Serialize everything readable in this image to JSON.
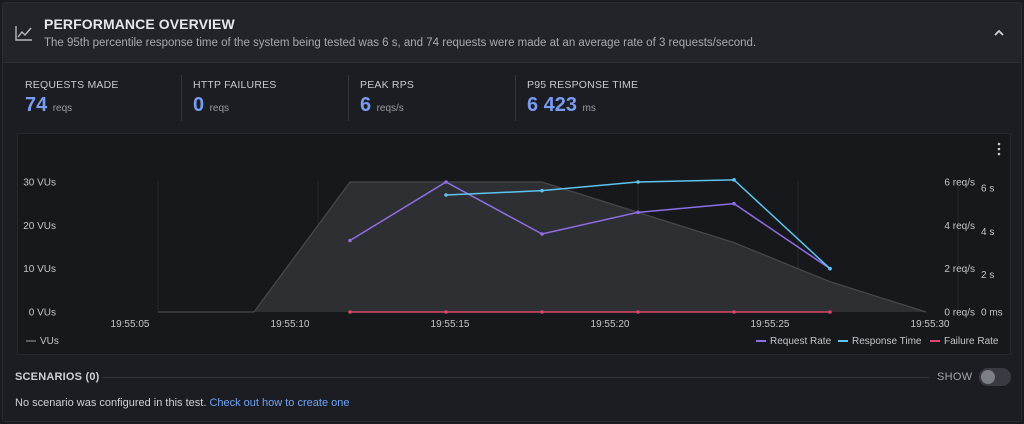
{
  "header": {
    "icon": "line-chart-icon",
    "title": "PERFORMANCE OVERVIEW",
    "description": "The 95th percentile response time of the system being tested was 6 s, and 74 requests were made at an average rate of 3 requests/second.",
    "collapse_icon": "chevron-up-icon"
  },
  "stats": [
    {
      "label": "REQUESTS MADE",
      "value": "74",
      "unit": "reqs"
    },
    {
      "label": "HTTP FAILURES",
      "value": "0",
      "unit": "reqs"
    },
    {
      "label": "PEAK RPS",
      "value": "6",
      "unit": "reqs/s"
    },
    {
      "label": "P95 RESPONSE TIME",
      "value": "6 423",
      "unit": "ms"
    }
  ],
  "chart_data": {
    "type": "line",
    "x_tick_labels": [
      "19:55:05",
      "19:55:10",
      "19:55:15",
      "19:55:20",
      "19:55:25",
      "19:55:30"
    ],
    "x_range": [
      "19:55:05",
      "19:55:30"
    ],
    "y_left": {
      "ticks": [
        0,
        10,
        20,
        30
      ],
      "tick_labels": [
        "0 VUs",
        "10 VUs",
        "20 VUs",
        "30 VUs"
      ],
      "range": [
        0,
        30
      ]
    },
    "y_right_rate": {
      "ticks": [
        0,
        2,
        4,
        6
      ],
      "tick_labels": [
        "0 req/s",
        "2 req/s",
        "4 req/s",
        "6 req/s"
      ],
      "range": [
        0,
        6
      ]
    },
    "y_right_time": {
      "ticks": [
        0,
        2,
        4,
        6
      ],
      "tick_labels": [
        "0 ms",
        "2 s",
        "4 s",
        "6 s"
      ],
      "range": [
        0,
        6
      ]
    },
    "series": [
      {
        "name": "VUs",
        "kind": "area",
        "axis": "left",
        "color": "#46474c",
        "points": [
          [
            "19:55:05",
            0
          ],
          [
            "19:55:08",
            0
          ],
          [
            "19:55:11",
            30
          ],
          [
            "19:55:17",
            30
          ],
          [
            "19:55:23",
            16
          ],
          [
            "19:55:26",
            7
          ],
          [
            "19:55:29",
            0
          ]
        ]
      },
      {
        "name": "Request Rate",
        "kind": "line",
        "axis": "right_rate",
        "color": "#8e6fe6",
        "points": [
          [
            "19:55:11",
            3.3
          ],
          [
            "19:55:14",
            6.0
          ],
          [
            "19:55:17",
            3.6
          ],
          [
            "19:55:20",
            4.6
          ],
          [
            "19:55:23",
            5.0
          ],
          [
            "19:55:26",
            2.0
          ]
        ]
      },
      {
        "name": "Response Time",
        "kind": "line",
        "axis": "right_time",
        "color": "#5ec4f0",
        "points": [
          [
            "19:55:14",
            5.4
          ],
          [
            "19:55:17",
            5.6
          ],
          [
            "19:55:20",
            6.0
          ],
          [
            "19:55:23",
            6.1
          ],
          [
            "19:55:26",
            2.0
          ]
        ]
      },
      {
        "name": "Failure Rate",
        "kind": "line",
        "axis": "right_rate",
        "color": "#e2436a",
        "points": [
          [
            "19:55:11",
            0
          ],
          [
            "19:55:14",
            0
          ],
          [
            "19:55:17",
            0
          ],
          [
            "19:55:20",
            0
          ],
          [
            "19:55:23",
            0
          ],
          [
            "19:55:26",
            0
          ]
        ]
      }
    ],
    "legend_left": [
      "VUs"
    ],
    "legend_right": [
      "Request Rate",
      "Response Time",
      "Failure Rate"
    ],
    "menu_icon": "kebab-menu-icon"
  },
  "scenarios": {
    "label": "SCENARIOS (0)",
    "toggle_label": "SHOW",
    "empty_text": "No scenario was configured in this test.",
    "link_text": "Check out how to create one"
  }
}
